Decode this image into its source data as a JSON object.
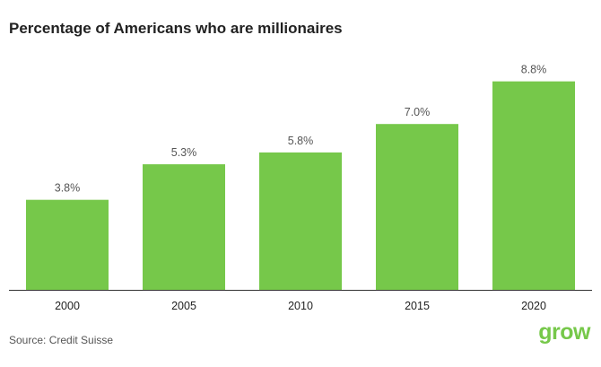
{
  "title": "Percentage of Americans who are millionaires",
  "source": "Source: Credit Suisse",
  "logo_text": "grow",
  "colors": {
    "bar": "#76c84a",
    "axis": "#333333",
    "title": "#222222",
    "logo": "#76c84a"
  },
  "chart_data": {
    "type": "bar",
    "title": "Percentage of Americans who are millionaires",
    "categories": [
      "2000",
      "2005",
      "2010",
      "2015",
      "2020"
    ],
    "values": [
      3.8,
      5.3,
      5.8,
      7.0,
      8.8
    ],
    "value_labels": [
      "3.8%",
      "5.3%",
      "5.8%",
      "7.0%",
      "8.8%"
    ],
    "ylim": [
      0,
      10
    ],
    "grid": false,
    "legend": "none"
  }
}
